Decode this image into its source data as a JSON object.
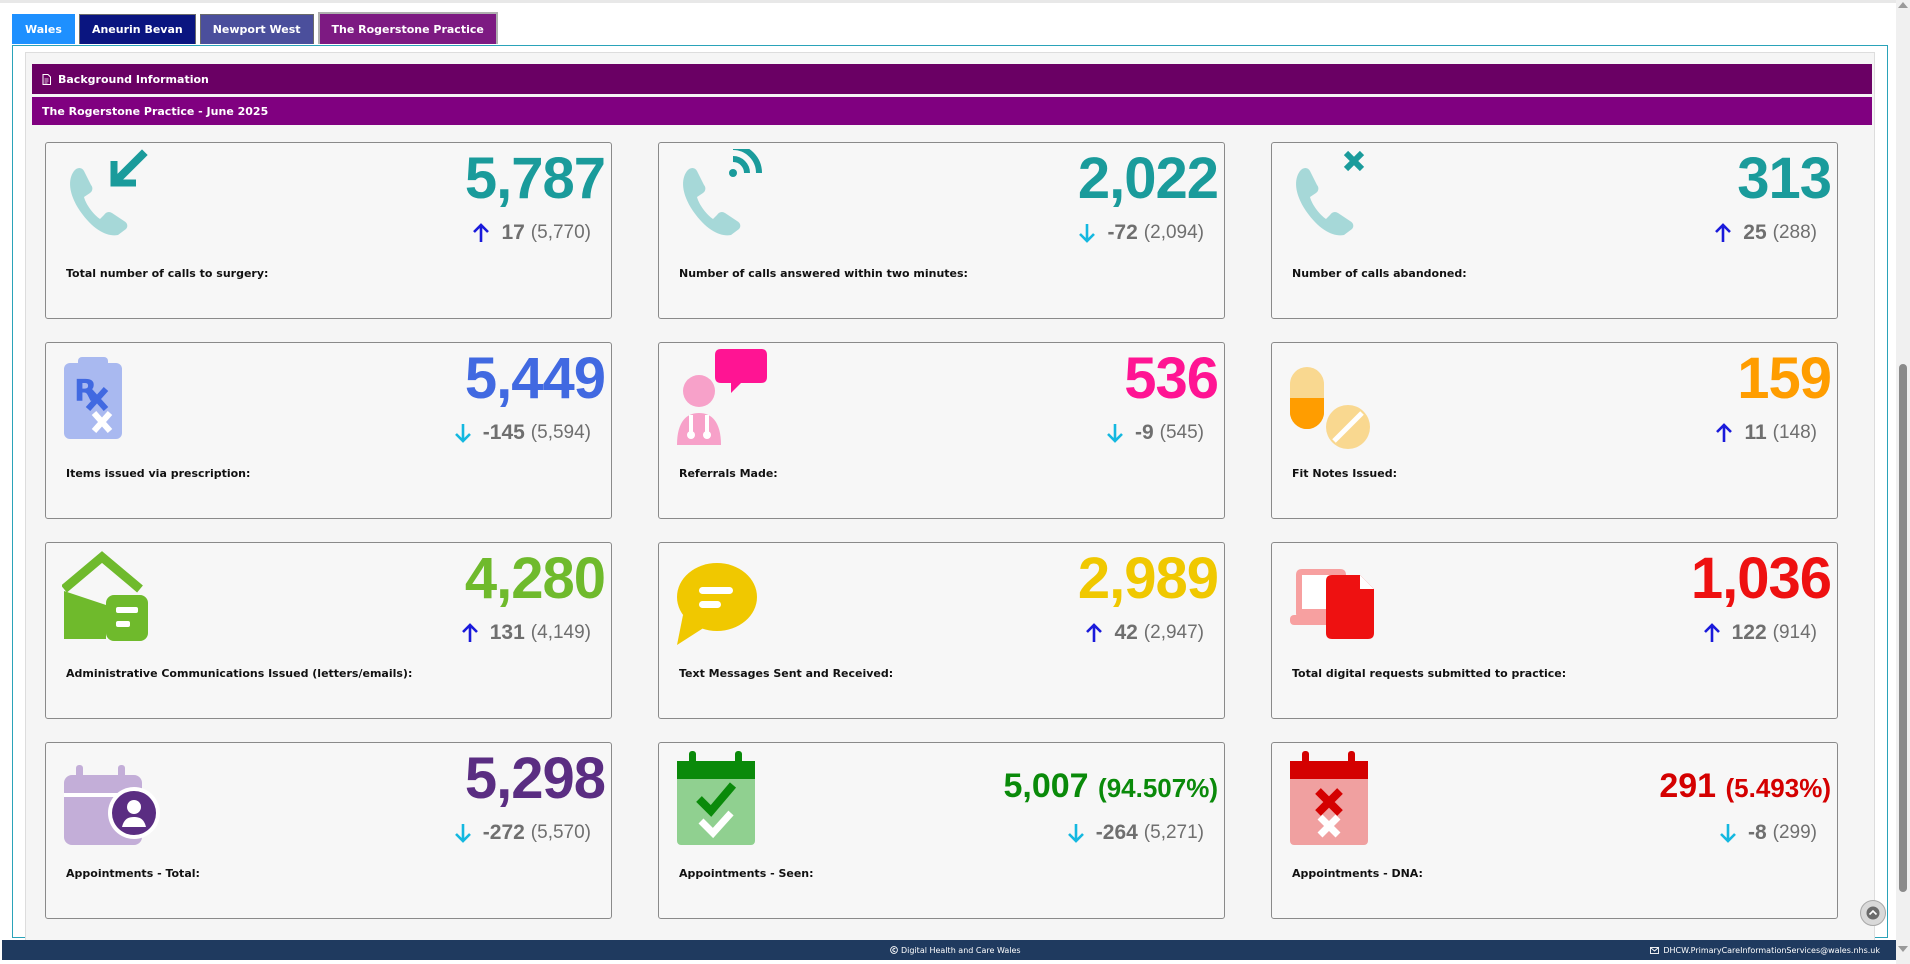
{
  "tabs": [
    {
      "label": "Wales"
    },
    {
      "label": "Aneurin Bevan"
    },
    {
      "label": "Newport West"
    },
    {
      "label": "The Rogerstone Practice"
    }
  ],
  "section": {
    "background_label": "Background Information",
    "practice_title": "The Rogerstone Practice - June 2025"
  },
  "cards": [
    {
      "label": "Total number of calls to surgery:",
      "value": "5,787",
      "change": "17",
      "previous": "(5,770)",
      "direction": "up",
      "color": "#1a9b9b",
      "icon": "phone-incoming-icon"
    },
    {
      "label": "Number of calls answered within two minutes:",
      "value": "2,022",
      "change": "-72",
      "previous": "(2,094)",
      "direction": "down",
      "color": "#1a9b9b",
      "icon": "phone-ringing-icon"
    },
    {
      "label": "Number of calls abandoned:",
      "value": "313",
      "change": "25",
      "previous": "(288)",
      "direction": "up",
      "color": "#1a9b9b",
      "icon": "phone-missed-icon"
    },
    {
      "label": "Items issued via prescription:",
      "value": "5,449",
      "change": "-145",
      "previous": "(5,594)",
      "direction": "down",
      "color": "#4169e1",
      "icon": "prescription-icon"
    },
    {
      "label": "Referrals Made:",
      "value": "536",
      "change": "-9",
      "previous": "(545)",
      "direction": "down",
      "color": "#ff1493",
      "icon": "doctor-referral-icon"
    },
    {
      "label": "Fit Notes Issued:",
      "value": "159",
      "change": "11",
      "previous": "(148)",
      "direction": "up",
      "color": "#ff9d00",
      "icon": "pills-icon"
    },
    {
      "label": "Administrative Communications Issued (letters/emails):",
      "value": "4,280",
      "change": "131",
      "previous": "(4,149)",
      "direction": "up",
      "color": "#6fba2c",
      "icon": "envelope-letter-icon"
    },
    {
      "label": "Text Messages Sent and Received:",
      "value": "2,989",
      "change": "42",
      "previous": "(2,947)",
      "direction": "up",
      "color": "#f0c800",
      "icon": "chat-bubble-icon"
    },
    {
      "label": "Total digital requests submitted to practice:",
      "value": "1,036",
      "change": "122",
      "previous": "(914)",
      "direction": "up",
      "color": "#ee1111",
      "icon": "digital-request-icon"
    },
    {
      "label": "Appointments - Total:",
      "value": "5,298",
      "change": "-272",
      "previous": "(5,570)",
      "direction": "down",
      "color": "#5a2d82",
      "icon": "calendar-user-icon"
    },
    {
      "label": "Appointments - Seen:",
      "value": "5,007",
      "value_pct": "(94.507%)",
      "change": "-264",
      "previous": "(5,271)",
      "direction": "down",
      "color": "#0a8a0a",
      "icon": "calendar-check-icon"
    },
    {
      "label": "Appointments - DNA:",
      "value": "291",
      "value_pct": "(5.493%)",
      "change": "-8",
      "previous": "(299)",
      "direction": "down",
      "color": "#d40000",
      "icon": "calendar-cross-icon"
    }
  ],
  "arrows": {
    "up_color": "#1a1adb",
    "down_color": "#14b8e0"
  },
  "footer": {
    "org": "Digital Health and Care Wales",
    "email": "DHCW.PrimaryCareInformationServices@wales.nhs.uk"
  }
}
